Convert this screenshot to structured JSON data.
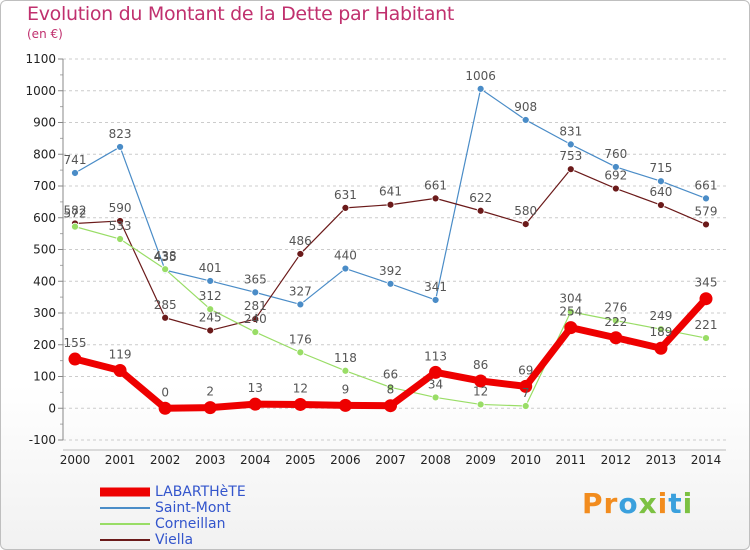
{
  "title": "Evolution du Montant de la Dette par Habitant",
  "subtitle": "(en €)",
  "logo": {
    "text": "Proxiti"
  },
  "chart_data": {
    "type": "line",
    "title": "Evolution du Montant de la Dette par Habitant",
    "subtitle": "(en €)",
    "x": [
      2000,
      2001,
      2002,
      2003,
      2004,
      2005,
      2006,
      2007,
      2008,
      2009,
      2010,
      2011,
      2012,
      2013,
      2014
    ],
    "ylim": [
      -100,
      1100
    ],
    "yticks": [
      -100,
      0,
      100,
      200,
      300,
      400,
      500,
      600,
      700,
      800,
      900,
      1000,
      1100
    ],
    "grid": "horizontal dashed",
    "legend_position": "bottom-left",
    "series": [
      {
        "name": "Saint-Mont",
        "color": "#4a8cc7",
        "values": [
          741,
          823,
          435,
          401,
          365,
          327,
          440,
          392,
          341,
          1006,
          908,
          831,
          760,
          715,
          661
        ]
      },
      {
        "name": "Viella",
        "color": "#6b1a1a",
        "values": [
          582,
          590,
          285,
          245,
          281,
          486,
          631,
          641,
          661,
          622,
          580,
          753,
          692,
          640,
          579
        ]
      },
      {
        "name": "Corneillan",
        "color": "#99dd66",
        "values": [
          572,
          533,
          438,
          312,
          240,
          176,
          118,
          66,
          34,
          12,
          7,
          304,
          276,
          249,
          221
        ]
      },
      {
        "name": "LABARTHèTE",
        "color": "#ee0000",
        "values": [
          155,
          119,
          0,
          2,
          13,
          12,
          9,
          8,
          113,
          86,
          69,
          254,
          222,
          189,
          345
        ]
      }
    ],
    "labels": {
      "Saint-Mont": [
        "741",
        "823",
        "435",
        "401",
        "365",
        "327",
        "440",
        "392",
        "341",
        "1006",
        "908",
        "831",
        "760",
        "715",
        "661"
      ],
      "Viella": [
        "582",
        "590",
        "285",
        "245",
        "281",
        "486",
        "631",
        "641",
        "661",
        "622",
        "580",
        "753",
        "692",
        "640",
        "579"
      ],
      "Corneillan": [
        "572",
        "533",
        "438",
        "312",
        "240",
        "176",
        "118",
        "66",
        "34",
        "12",
        "7",
        "304",
        "276",
        "249",
        "221"
      ],
      "LABARTHèTE": [
        "155",
        "119",
        "0",
        "2",
        "13",
        "12",
        "9",
        "8",
        "113",
        "86",
        "69",
        "254",
        "222",
        "189",
        "345"
      ]
    }
  },
  "legend": [
    {
      "label": "LABARTHèTE",
      "color": "#ee0000"
    },
    {
      "label": "Saint-Mont",
      "color": "#4a8cc7"
    },
    {
      "label": "Corneillan",
      "color": "#99dd66"
    },
    {
      "label": "Viella",
      "color": "#6b1a1a"
    }
  ]
}
